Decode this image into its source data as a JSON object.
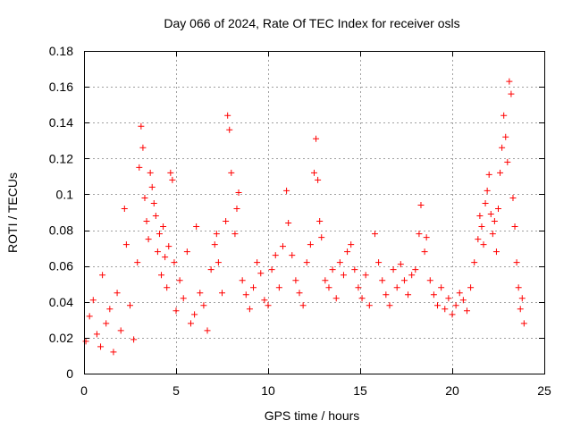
{
  "chart_data": {
    "type": "scatter",
    "title": "Day 066 of 2024, Rate Of TEC Index for receiver osls",
    "xlabel": "GPS time / hours",
    "ylabel": "ROTI / TECUs",
    "xlim": [
      0,
      25
    ],
    "ylim": [
      0,
      0.18
    ],
    "xticks": [
      0,
      5,
      10,
      15,
      20,
      25
    ],
    "xtick_labels": [
      "0",
      "5",
      "10",
      "15",
      "20",
      "25"
    ],
    "yticks": [
      0,
      0.02,
      0.04,
      0.06,
      0.08,
      0.1,
      0.12,
      0.14,
      0.16,
      0.18
    ],
    "ytick_labels": [
      "0",
      "0.02",
      "0.04",
      "0.06",
      "0.08",
      "0.1",
      "0.12",
      "0.14",
      "0.16",
      "0.18"
    ],
    "grid": true,
    "marker": "plus",
    "color": "#ff0000",
    "series": [
      {
        "name": "ROTI",
        "points": [
          [
            0.1,
            0.018
          ],
          [
            0.3,
            0.032
          ],
          [
            0.5,
            0.041
          ],
          [
            0.7,
            0.022
          ],
          [
            0.9,
            0.015
          ],
          [
            1.0,
            0.055
          ],
          [
            1.2,
            0.028
          ],
          [
            1.4,
            0.036
          ],
          [
            1.6,
            0.012
          ],
          [
            1.8,
            0.045
          ],
          [
            2.0,
            0.024
          ],
          [
            2.2,
            0.092
          ],
          [
            2.3,
            0.072
          ],
          [
            2.5,
            0.038
          ],
          [
            2.7,
            0.019
          ],
          [
            2.9,
            0.062
          ],
          [
            3.0,
            0.115
          ],
          [
            3.1,
            0.138
          ],
          [
            3.2,
            0.126
          ],
          [
            3.3,
            0.098
          ],
          [
            3.4,
            0.085
          ],
          [
            3.5,
            0.075
          ],
          [
            3.6,
            0.112
          ],
          [
            3.7,
            0.104
          ],
          [
            3.8,
            0.095
          ],
          [
            3.9,
            0.088
          ],
          [
            4.0,
            0.068
          ],
          [
            4.1,
            0.078
          ],
          [
            4.2,
            0.055
          ],
          [
            4.3,
            0.082
          ],
          [
            4.4,
            0.065
          ],
          [
            4.5,
            0.048
          ],
          [
            4.6,
            0.071
          ],
          [
            4.7,
            0.112
          ],
          [
            4.8,
            0.108
          ],
          [
            4.9,
            0.062
          ],
          [
            5.0,
            0.035
          ],
          [
            5.2,
            0.052
          ],
          [
            5.4,
            0.042
          ],
          [
            5.6,
            0.068
          ],
          [
            5.8,
            0.028
          ],
          [
            6.0,
            0.033
          ],
          [
            6.1,
            0.082
          ],
          [
            6.3,
            0.045
          ],
          [
            6.5,
            0.038
          ],
          [
            6.7,
            0.024
          ],
          [
            6.9,
            0.058
          ],
          [
            7.1,
            0.072
          ],
          [
            7.2,
            0.078
          ],
          [
            7.3,
            0.062
          ],
          [
            7.5,
            0.045
          ],
          [
            7.7,
            0.085
          ],
          [
            7.8,
            0.144
          ],
          [
            7.9,
            0.136
          ],
          [
            8.0,
            0.112
          ],
          [
            8.2,
            0.078
          ],
          [
            8.3,
            0.092
          ],
          [
            8.4,
            0.101
          ],
          [
            8.6,
            0.052
          ],
          [
            8.8,
            0.044
          ],
          [
            9.0,
            0.036
          ],
          [
            9.2,
            0.048
          ],
          [
            9.4,
            0.062
          ],
          [
            9.6,
            0.056
          ],
          [
            9.8,
            0.041
          ],
          [
            10.0,
            0.038
          ],
          [
            10.2,
            0.058
          ],
          [
            10.4,
            0.066
          ],
          [
            10.6,
            0.048
          ],
          [
            10.8,
            0.071
          ],
          [
            11.0,
            0.102
          ],
          [
            11.1,
            0.084
          ],
          [
            11.3,
            0.066
          ],
          [
            11.5,
            0.052
          ],
          [
            11.7,
            0.045
          ],
          [
            11.9,
            0.038
          ],
          [
            12.1,
            0.062
          ],
          [
            12.3,
            0.072
          ],
          [
            12.5,
            0.112
          ],
          [
            12.6,
            0.131
          ],
          [
            12.7,
            0.108
          ],
          [
            12.8,
            0.085
          ],
          [
            12.9,
            0.076
          ],
          [
            13.1,
            0.052
          ],
          [
            13.3,
            0.048
          ],
          [
            13.5,
            0.058
          ],
          [
            13.7,
            0.042
          ],
          [
            13.9,
            0.062
          ],
          [
            14.1,
            0.055
          ],
          [
            14.3,
            0.068
          ],
          [
            14.5,
            0.072
          ],
          [
            14.7,
            0.058
          ],
          [
            14.9,
            0.048
          ],
          [
            15.1,
            0.042
          ],
          [
            15.3,
            0.055
          ],
          [
            15.5,
            0.038
          ],
          [
            15.8,
            0.078
          ],
          [
            16.0,
            0.062
          ],
          [
            16.2,
            0.052
          ],
          [
            16.4,
            0.044
          ],
          [
            16.6,
            0.038
          ],
          [
            16.8,
            0.058
          ],
          [
            17.0,
            0.048
          ],
          [
            17.2,
            0.061
          ],
          [
            17.4,
            0.052
          ],
          [
            17.6,
            0.044
          ],
          [
            17.8,
            0.055
          ],
          [
            18.0,
            0.058
          ],
          [
            18.2,
            0.078
          ],
          [
            18.3,
            0.094
          ],
          [
            18.5,
            0.068
          ],
          [
            18.6,
            0.076
          ],
          [
            18.8,
            0.052
          ],
          [
            19.0,
            0.044
          ],
          [
            19.2,
            0.038
          ],
          [
            19.4,
            0.048
          ],
          [
            19.6,
            0.036
          ],
          [
            19.8,
            0.042
          ],
          [
            20.0,
            0.033
          ],
          [
            20.2,
            0.038
          ],
          [
            20.4,
            0.045
          ],
          [
            20.6,
            0.041
          ],
          [
            20.8,
            0.035
          ],
          [
            21.0,
            0.048
          ],
          [
            21.2,
            0.062
          ],
          [
            21.4,
            0.075
          ],
          [
            21.5,
            0.088
          ],
          [
            21.6,
            0.082
          ],
          [
            21.7,
            0.072
          ],
          [
            21.8,
            0.095
          ],
          [
            21.9,
            0.102
          ],
          [
            22.0,
            0.111
          ],
          [
            22.1,
            0.089
          ],
          [
            22.2,
            0.078
          ],
          [
            22.3,
            0.085
          ],
          [
            22.4,
            0.068
          ],
          [
            22.5,
            0.092
          ],
          [
            22.6,
            0.112
          ],
          [
            22.7,
            0.126
          ],
          [
            22.8,
            0.144
          ],
          [
            22.9,
            0.132
          ],
          [
            23.0,
            0.118
          ],
          [
            23.1,
            0.163
          ],
          [
            23.2,
            0.156
          ],
          [
            23.3,
            0.098
          ],
          [
            23.4,
            0.082
          ],
          [
            23.5,
            0.062
          ],
          [
            23.6,
            0.048
          ],
          [
            23.7,
            0.036
          ],
          [
            23.8,
            0.042
          ],
          [
            23.9,
            0.028
          ]
        ]
      }
    ]
  }
}
